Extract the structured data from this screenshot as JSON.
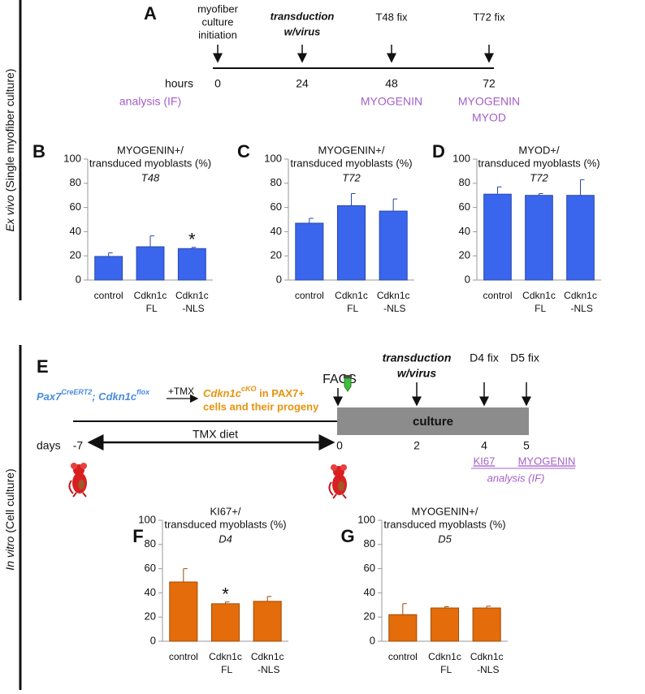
{
  "side": [
    {
      "italic": "Ex vivo",
      "rest": "(Single myofiber culture)"
    },
    {
      "italic": "In vitro",
      "rest": "(Cell culture)"
    }
  ],
  "timeline_a": {
    "letter": "A",
    "events": [
      {
        "label": [
          "myofiber",
          "culture",
          "initiation"
        ],
        "time": "0"
      },
      {
        "label": [
          "transduction",
          "w/virus"
        ],
        "time": "24"
      },
      {
        "label": [
          "T48 fix"
        ],
        "time": "48",
        "analysis": [
          "MYOGENIN"
        ]
      },
      {
        "label": [
          "T72 fix"
        ],
        "time": "72",
        "analysis": [
          "MYOGENIN",
          "MYOD"
        ]
      }
    ],
    "unit": "hours",
    "analysis_label": "analysis (IF)"
  },
  "timeline_e": {
    "letter": "E",
    "genotype": [
      {
        "text": "Pax7",
        "sup": "CreERT2"
      },
      {
        "text": "; Cdkn1c",
        "sup": "flox"
      }
    ],
    "treatment": "+TMX",
    "result": {
      "text": "Cdkn1c",
      "sup": "cKO",
      "rest": " in PAX7+",
      "line2": "cells and their progeny"
    },
    "sort": "FACS",
    "events": [
      {
        "label": [
          "transduction",
          "w/virus"
        ],
        "time": "2"
      },
      {
        "label": [
          "D4 fix"
        ],
        "time": "4",
        "analysis": "KI67"
      },
      {
        "label": [
          "D5 fix"
        ],
        "time": "5",
        "analysis": "MYOGENIN"
      }
    ],
    "start": "-7",
    "zero": "0",
    "unit": "days",
    "diet": "TMX diet",
    "phase": "culture",
    "analysis_label": "analysis (IF)"
  },
  "chart_data": [
    {
      "type": "bar",
      "letter": "B",
      "title": [
        "MYOGENIN+/",
        "transduced myoblasts (%)"
      ],
      "subtitle": "T48",
      "categories": [
        "control",
        "Cdkn1c FL",
        "Cdkn1c -NLS"
      ],
      "values": [
        19.5,
        27.5,
        26
      ],
      "errors": [
        3,
        9,
        1
      ],
      "annotations": [
        {
          "text": "*",
          "category": "Cdkn1c -NLS"
        }
      ],
      "color": "#3a66ee",
      "ylim": [
        0,
        100
      ],
      "yticks": [
        0,
        20,
        40,
        60,
        80,
        100
      ]
    },
    {
      "type": "bar",
      "letter": "C",
      "title": [
        "MYOGENIN+/",
        "transduced myoblasts (%)"
      ],
      "subtitle": "T72",
      "categories": [
        "control",
        "Cdkn1c FL",
        "Cdkn1c -NLS"
      ],
      "values": [
        47,
        61.5,
        57
      ],
      "errors": [
        4,
        10,
        10
      ],
      "color": "#3a66ee",
      "ylim": [
        0,
        100
      ],
      "yticks": [
        0,
        20,
        40,
        60,
        80,
        100
      ]
    },
    {
      "type": "bar",
      "letter": "D",
      "title": [
        "MYOD+/",
        "transduced myoblasts (%)"
      ],
      "subtitle": "T72",
      "categories": [
        "control",
        "Cdkn1c FL",
        "Cdkn1c -NLS"
      ],
      "values": [
        71,
        70,
        70
      ],
      "errors": [
        6,
        1.5,
        13
      ],
      "color": "#3a66ee",
      "ylim": [
        0,
        100
      ],
      "yticks": [
        0,
        20,
        40,
        60,
        80,
        100
      ]
    },
    {
      "type": "bar",
      "letter": "F",
      "title": [
        "KI67+/",
        "transduced myoblasts (%)"
      ],
      "subtitle": "D4",
      "categories": [
        "control",
        "Cdkn1c FL",
        "Cdkn1c -NLS"
      ],
      "values": [
        49,
        31,
        33
      ],
      "errors": [
        11,
        1.5,
        4
      ],
      "annotations": [
        {
          "text": "*",
          "category": "Cdkn1c FL"
        }
      ],
      "color": "#e46c0a",
      "ylim": [
        0,
        100
      ],
      "yticks": [
        0,
        20,
        40,
        60,
        80,
        100
      ]
    },
    {
      "type": "bar",
      "letter": "G",
      "title": [
        "MYOGENIN+/",
        "transduced myoblasts (%)"
      ],
      "subtitle": "D5",
      "categories": [
        "control",
        "Cdkn1c FL",
        "Cdkn1c -NLS"
      ],
      "values": [
        22,
        27.5,
        27.5
      ],
      "errors": [
        9,
        1,
        1.5
      ],
      "color": "#e46c0a",
      "ylim": [
        0,
        100
      ],
      "yticks": [
        0,
        20,
        40,
        60,
        80,
        100
      ]
    }
  ]
}
